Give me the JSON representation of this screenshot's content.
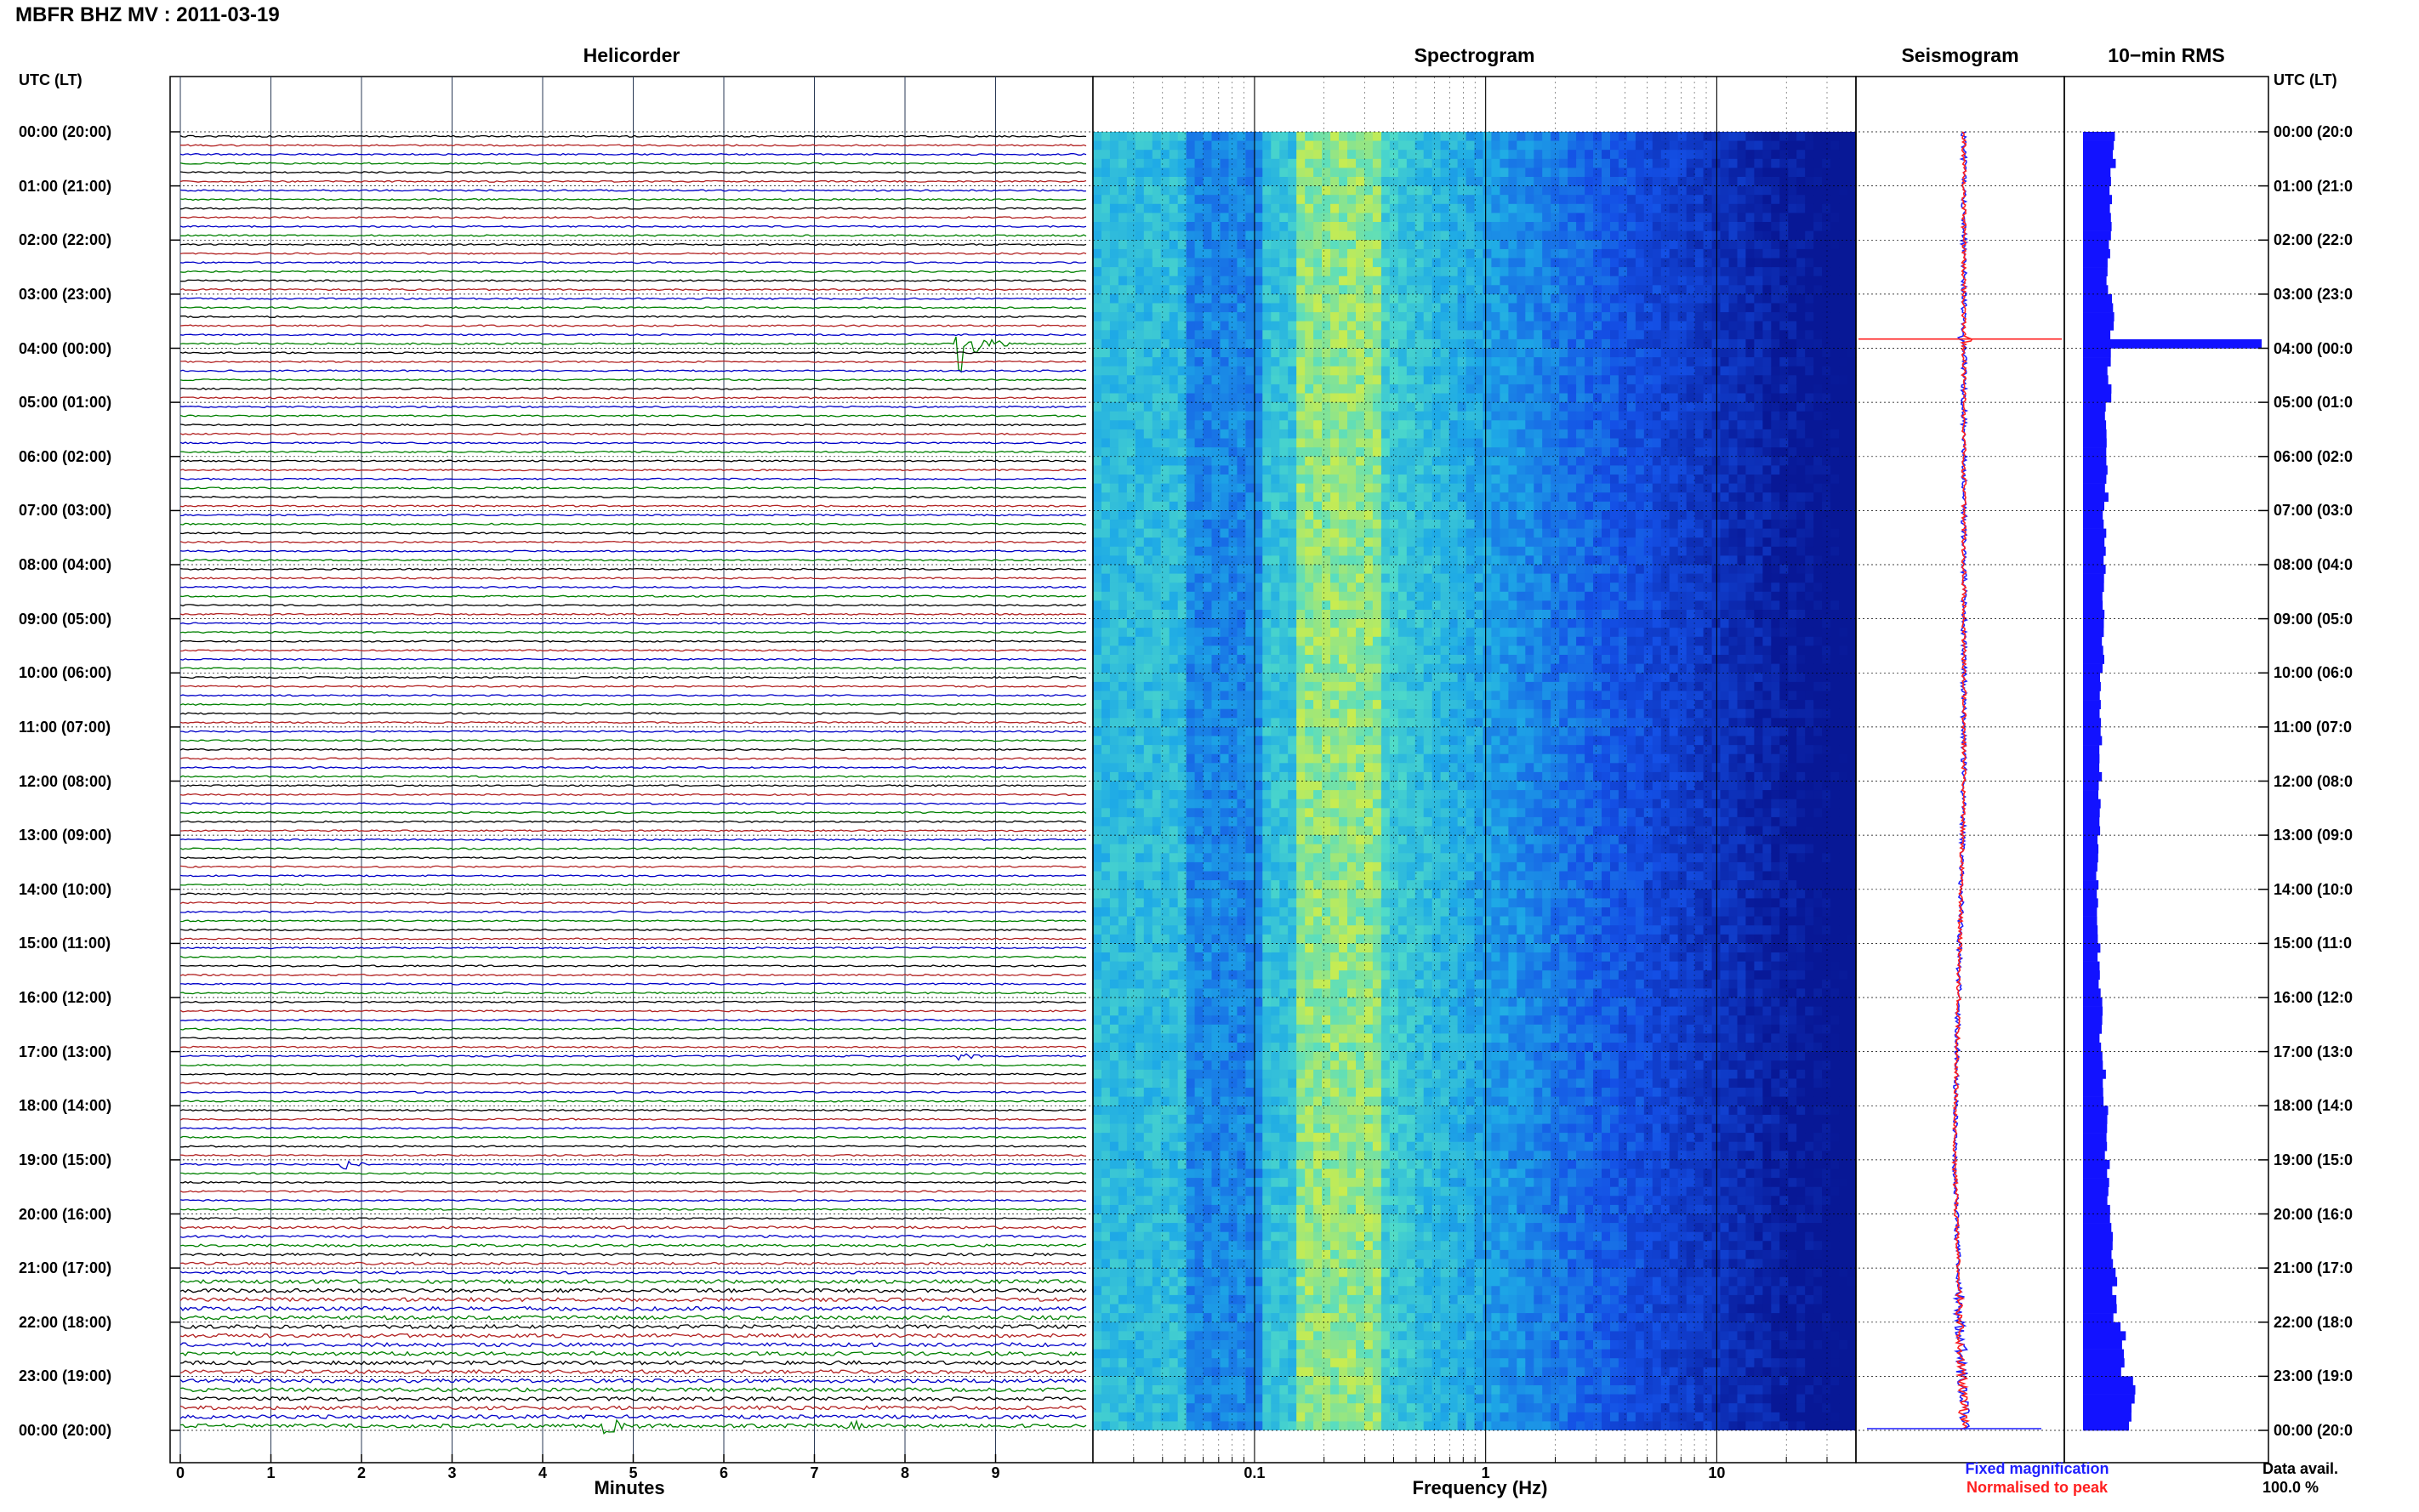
{
  "header": {
    "title": "MBFR BHZ MV : 2011-03-19"
  },
  "panels": {
    "helicorder_title": "Helicorder",
    "spectrogram_title": "Spectrogram",
    "seismogram_title": "Seismogram",
    "rms_title": "10−min RMS"
  },
  "time_axis": {
    "left_label": "UTC (LT)",
    "right_label": "UTC (LT)",
    "labels": [
      "00:00 (20:00)",
      "01:00 (21:00)",
      "02:00 (22:00)",
      "03:00 (23:00)",
      "04:00 (00:00)",
      "05:00 (01:00)",
      "06:00 (02:00)",
      "07:00 (03:00)",
      "08:00 (04:00)",
      "09:00 (05:00)",
      "10:00 (06:00)",
      "11:00 (07:00)",
      "12:00 (08:00)",
      "13:00 (09:00)",
      "14:00 (10:00)",
      "15:00 (11:00)",
      "16:00 (12:00)",
      "17:00 (13:00)",
      "18:00 (14:00)",
      "19:00 (15:00)",
      "20:00 (16:00)",
      "21:00 (17:00)",
      "22:00 (18:00)",
      "23:00 (19:00)",
      "00:00 (20:00)"
    ],
    "right_labels": [
      "00:00 (20:0",
      "01:00 (21:0",
      "02:00 (22:0",
      "03:00 (23:0",
      "04:00 (00:0",
      "05:00 (01:0",
      "06:00 (02:0",
      "07:00 (03:0",
      "08:00 (04:0",
      "09:00 (05:0",
      "10:00 (06:0",
      "11:00 (07:0",
      "12:00 (08:0",
      "13:00 (09:0",
      "14:00 (10:0",
      "15:00 (11:0",
      "16:00 (12:0",
      "17:00 (13:0",
      "18:00 (14:0",
      "19:00 (15:0",
      "20:00 (16:0",
      "21:00 (17:0",
      "22:00 (18:0",
      "23:00 (19:0",
      "00:00 (20:0"
    ]
  },
  "helicorder_axis": {
    "xlabel": "Minutes",
    "ticks": [
      "0",
      "1",
      "2",
      "3",
      "4",
      "5",
      "6",
      "7",
      "8",
      "9"
    ]
  },
  "spectrogram_axis": {
    "xlabel": "Frequency (Hz)",
    "ticks": [
      "0.1",
      "1",
      "10"
    ]
  },
  "legend": {
    "fixed": "Fixed magnification",
    "normalised": "Normalised to peak",
    "fixed_color": "#1f1fff",
    "normalised_color": "#ff1f1f"
  },
  "footer": {
    "data_avail_label": "Data avail.",
    "data_avail_value": "100.0 %"
  },
  "colors": {
    "trace": [
      "#000000",
      "#b22222",
      "#0000c8",
      "#008000"
    ],
    "spectro_low": "#0a1fa0",
    "spectro_high": "#f0f020",
    "rms_bar": "#1212ff"
  },
  "chart_data": [
    {
      "type": "line",
      "title": "Helicorder",
      "xlabel": "Minutes",
      "x_range": [
        0,
        10
      ],
      "rows_per_hour": 6,
      "row_minutes": 10,
      "events": [
        {
          "time": "03:50",
          "minute": 8.6,
          "amplitude": "large"
        },
        {
          "time": "17:00",
          "minute": 8.6,
          "amplitude": "small"
        },
        {
          "time": "19:00",
          "minute": 1.8,
          "amplitude": "small"
        },
        {
          "time": "00:00",
          "minute": 4.7,
          "amplitude": "medium"
        },
        {
          "time": "00:00",
          "minute": 7.4,
          "amplitude": "small"
        }
      ]
    },
    {
      "type": "heatmap",
      "title": "Spectrogram",
      "xlabel": "Frequency (Hz)",
      "x_scale": "log",
      "x_range": [
        0.02,
        40
      ],
      "y_range": [
        "00:00",
        "24:00"
      ],
      "peak_frequency_band_hz": [
        0.15,
        0.35
      ]
    },
    {
      "type": "line",
      "title": "Seismogram",
      "series": [
        {
          "name": "Fixed magnification",
          "color": "#1f1fff"
        },
        {
          "name": "Normalised to peak",
          "color": "#ff1f1f"
        }
      ]
    },
    {
      "type": "bar",
      "title": "10−min RMS",
      "orientation": "horizontal",
      "hourly_relative": [
        0.17,
        0.15,
        0.14,
        0.16,
        0.15,
        0.13,
        0.13,
        0.12,
        0.12,
        0.11,
        0.1,
        0.1,
        0.09,
        0.08,
        0.08,
        0.09,
        0.1,
        0.12,
        0.13,
        0.14,
        0.16,
        0.18,
        0.22,
        0.28
      ],
      "peak": {
        "time": "03:50",
        "relative": 1.0
      }
    }
  ]
}
